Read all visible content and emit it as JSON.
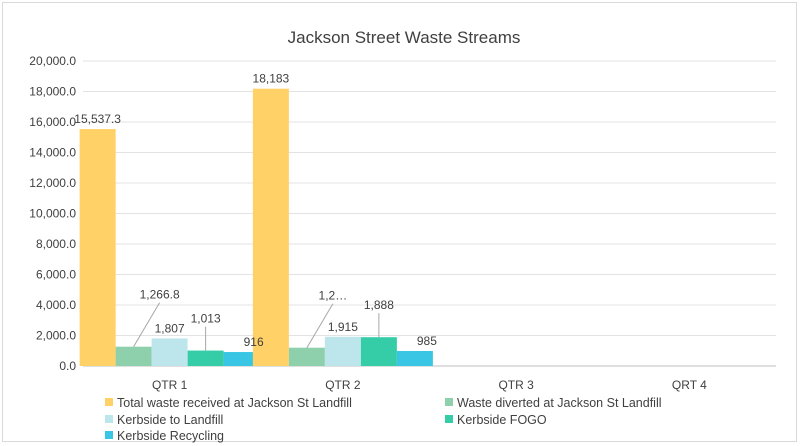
{
  "chart_data": {
    "type": "bar",
    "title": "Jackson Street Waste Streams",
    "xlabel": "",
    "ylabel": "",
    "ylim": [
      0,
      20000
    ],
    "yticks": [
      "0.0",
      "2,000.0",
      "4,000.0",
      "6,000.0",
      "8,000.0",
      "10,000.0",
      "12,000.0",
      "14,000.0",
      "16,000.0",
      "18,000.0",
      "20,000.0"
    ],
    "categories": [
      "QTR 1",
      "QTR 2",
      "QTR 3",
      "QRT 4"
    ],
    "grid": true,
    "legend_position": "bottom",
    "series": [
      {
        "name": "Total waste received at Jackson St Landfill",
        "color": "#FFD166",
        "values": [
          15537.3,
          18183,
          null,
          null
        ],
        "labels": [
          "15,537.3",
          "18,183",
          "",
          ""
        ]
      },
      {
        "name": "Waste diverted at Jackson St Landfill",
        "color": "#8FD0AC",
        "values": [
          1266.8,
          1200,
          null,
          null
        ],
        "labels": [
          "1,266.8",
          "1,2…",
          "",
          ""
        ]
      },
      {
        "name": "Kerbside to Landfill",
        "color": "#BDE6EC",
        "values": [
          1807,
          1915,
          null,
          null
        ],
        "labels": [
          "1,807",
          "1,915",
          "",
          ""
        ]
      },
      {
        "name": "Kerbside FOGO",
        "color": "#35CCA8",
        "values": [
          1013,
          1888,
          null,
          null
        ],
        "labels": [
          "1,013",
          "1,888",
          "",
          ""
        ]
      },
      {
        "name": "Kerbside Recycling",
        "color": "#38C6E4",
        "values": [
          916,
          985,
          null,
          null
        ],
        "labels": [
          "916",
          "985",
          "",
          ""
        ]
      }
    ]
  }
}
